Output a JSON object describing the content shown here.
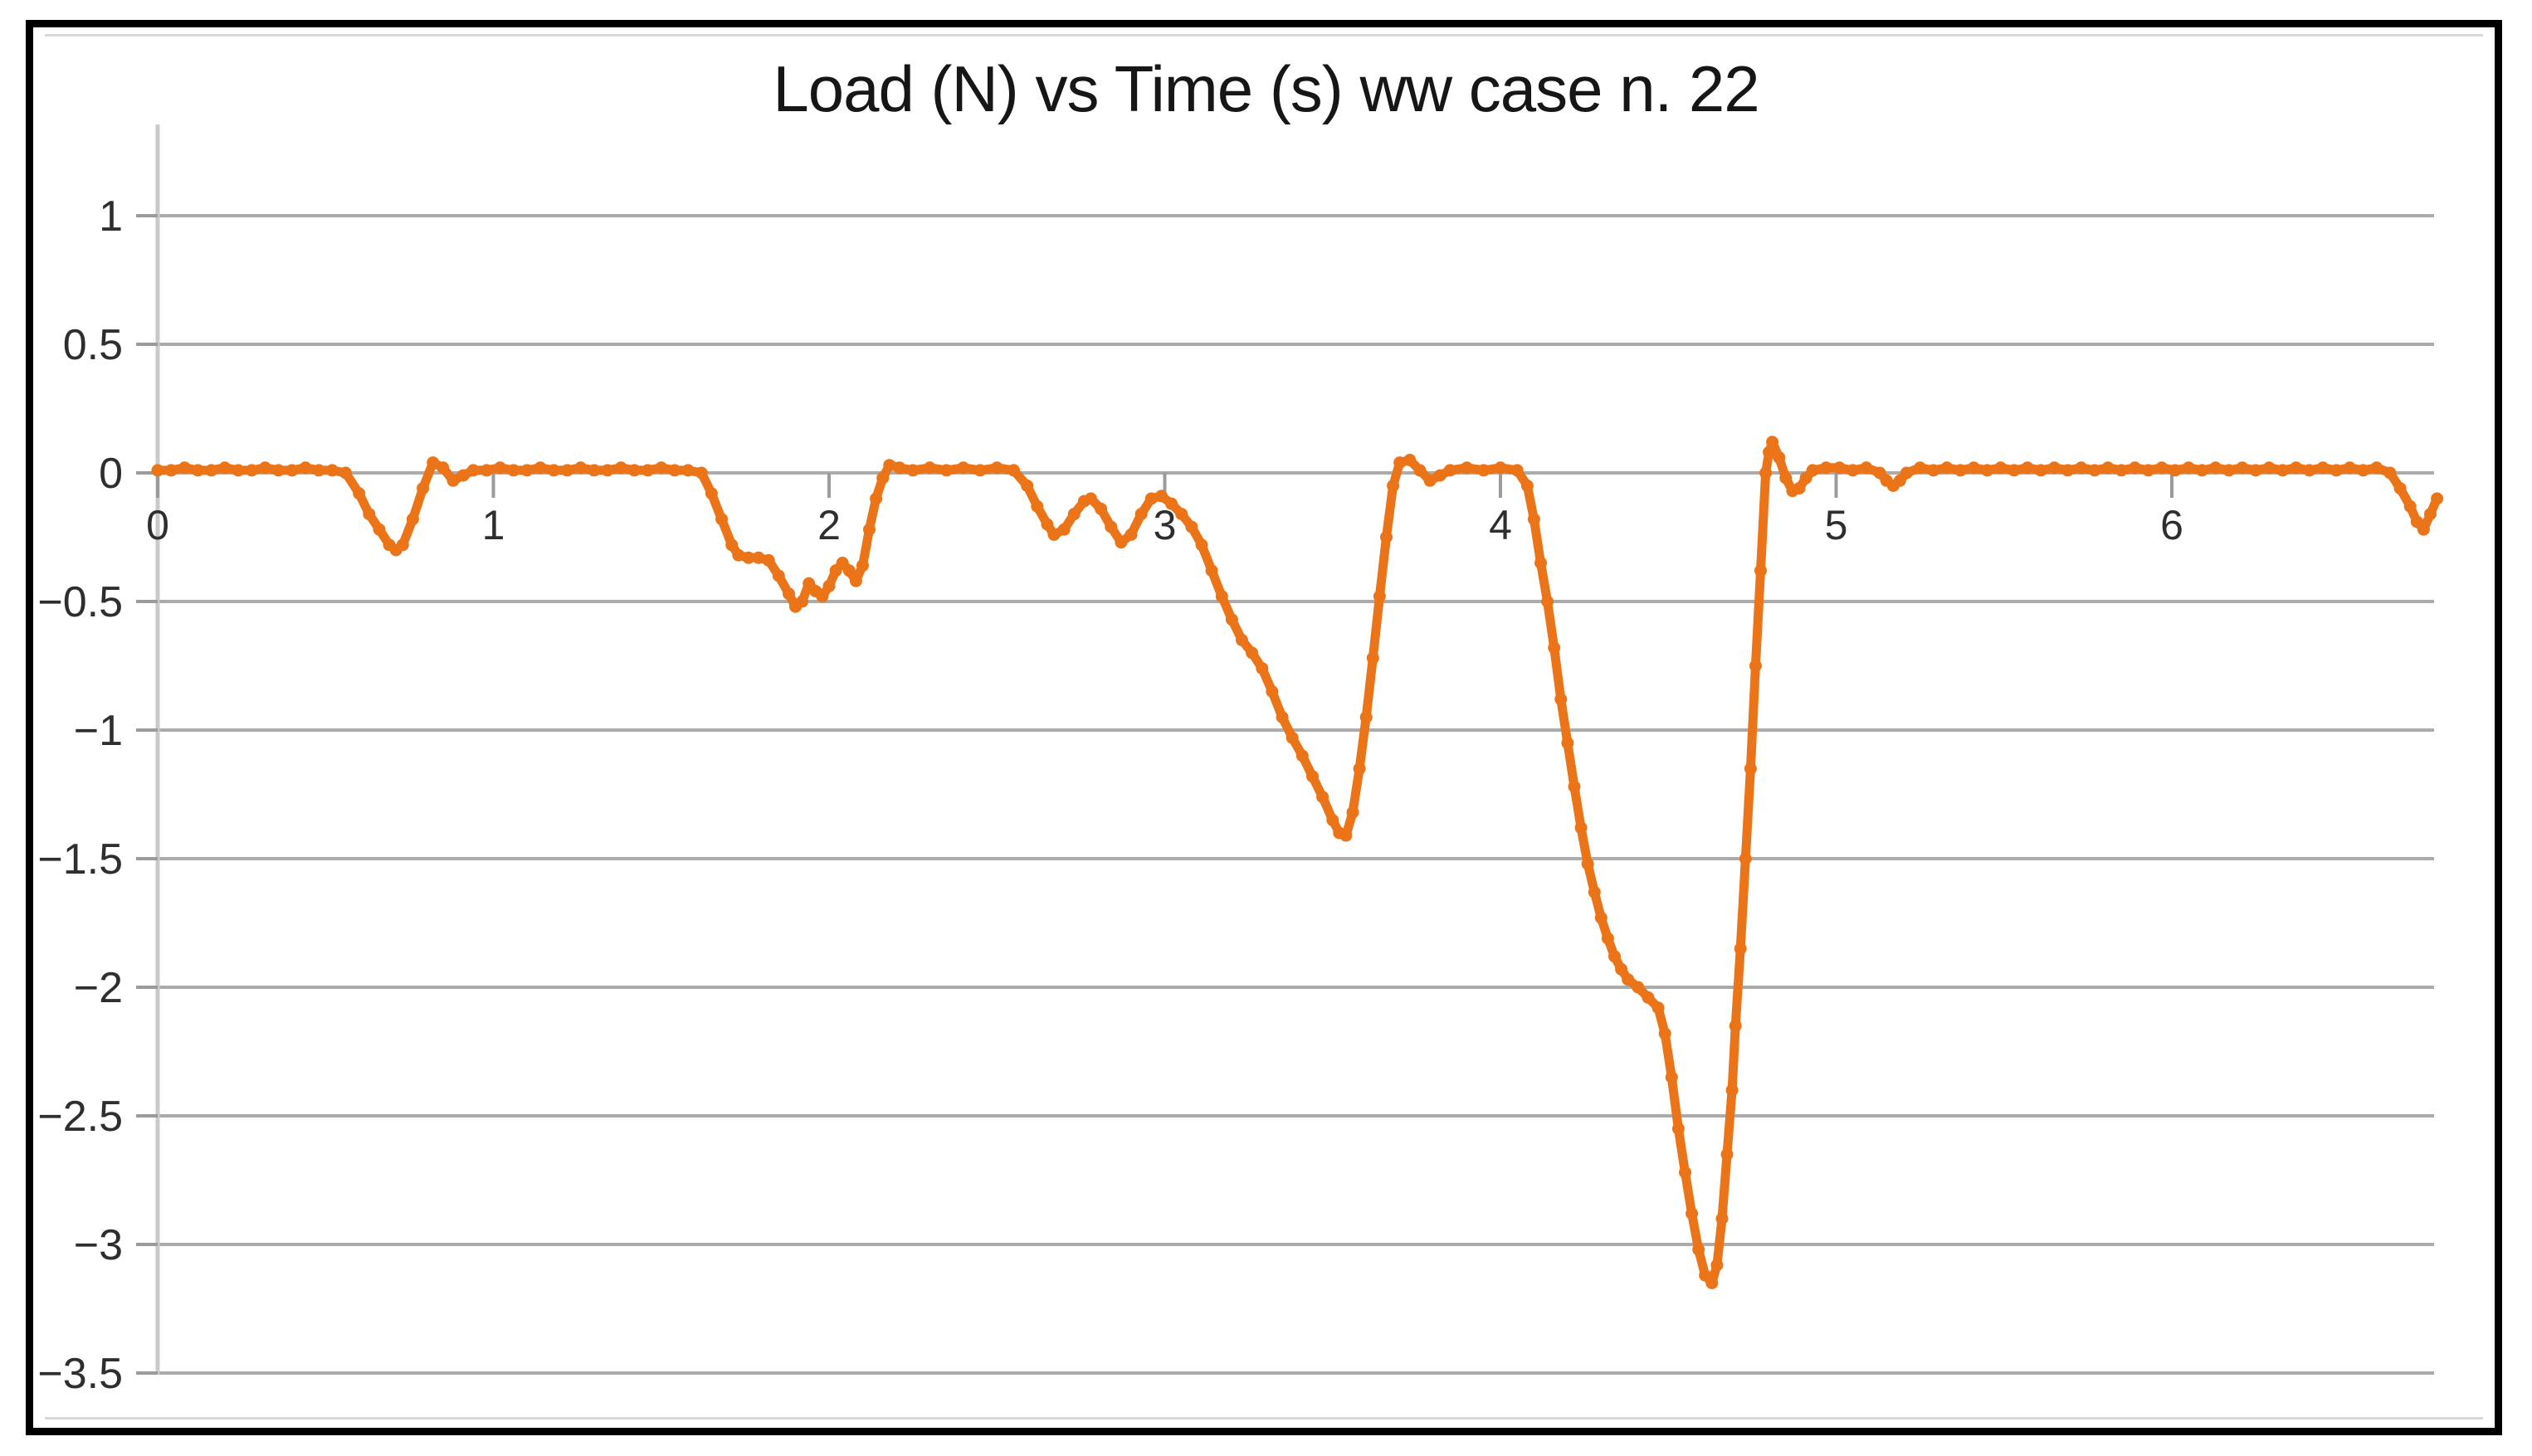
{
  "window": {
    "background": "#ffffff",
    "border_color": "#000000"
  },
  "chart": {
    "colors": {
      "series": "#ec7418",
      "gridline": "#ababab",
      "axis_line": "#c9c9c9",
      "tick": "#9b9b9b",
      "label": "#2e2e2e",
      "title": "#161616",
      "frame_line": "#d8d8d8"
    }
  },
  "chart_data": {
    "type": "line",
    "title": "Load (N) vs Time (s) ww case n. 22",
    "xlabel": "",
    "ylabel": "",
    "xlim": [
      0,
      6.78
    ],
    "ylim": [
      -3.5,
      1
    ],
    "grid": true,
    "legend": false,
    "x_ticks": [
      0,
      1,
      2,
      3,
      4,
      5,
      6
    ],
    "x_tick_labels": [
      "0",
      "1",
      "2",
      "3",
      "4",
      "5",
      "6"
    ],
    "y_ticks": [
      1,
      0.5,
      0,
      -0.5,
      -1,
      -1.5,
      -2,
      -2.5,
      -3,
      -3.5
    ],
    "y_tick_labels": [
      "1",
      "0.5",
      "0",
      "−0.5",
      "−1",
      "−1.5",
      "−2",
      "−2.5",
      "−3",
      "−3.5"
    ],
    "series": [
      {
        "name": "Load (N)",
        "points": [
          [
            0.0,
            0.01
          ],
          [
            0.04,
            0.01
          ],
          [
            0.08,
            0.02
          ],
          [
            0.12,
            0.01
          ],
          [
            0.16,
            0.01
          ],
          [
            0.2,
            0.02
          ],
          [
            0.24,
            0.01
          ],
          [
            0.28,
            0.01
          ],
          [
            0.32,
            0.02
          ],
          [
            0.36,
            0.01
          ],
          [
            0.4,
            0.01
          ],
          [
            0.44,
            0.02
          ],
          [
            0.48,
            0.01
          ],
          [
            0.52,
            0.01
          ],
          [
            0.56,
            0.0
          ],
          [
            0.6,
            -0.08
          ],
          [
            0.63,
            -0.16
          ],
          [
            0.66,
            -0.22
          ],
          [
            0.69,
            -0.28
          ],
          [
            0.71,
            -0.3
          ],
          [
            0.73,
            -0.28
          ],
          [
            0.76,
            -0.18
          ],
          [
            0.79,
            -0.06
          ],
          [
            0.82,
            0.04
          ],
          [
            0.85,
            0.02
          ],
          [
            0.88,
            -0.03
          ],
          [
            0.91,
            -0.01
          ],
          [
            0.94,
            0.01
          ],
          [
            0.98,
            0.01
          ],
          [
            1.02,
            0.02
          ],
          [
            1.06,
            0.01
          ],
          [
            1.1,
            0.01
          ],
          [
            1.14,
            0.02
          ],
          [
            1.18,
            0.01
          ],
          [
            1.22,
            0.01
          ],
          [
            1.26,
            0.02
          ],
          [
            1.3,
            0.01
          ],
          [
            1.34,
            0.01
          ],
          [
            1.38,
            0.02
          ],
          [
            1.42,
            0.01
          ],
          [
            1.46,
            0.01
          ],
          [
            1.5,
            0.02
          ],
          [
            1.54,
            0.01
          ],
          [
            1.58,
            0.01
          ],
          [
            1.62,
            0.0
          ],
          [
            1.65,
            -0.08
          ],
          [
            1.68,
            -0.18
          ],
          [
            1.71,
            -0.28
          ],
          [
            1.73,
            -0.32
          ],
          [
            1.76,
            -0.33
          ],
          [
            1.79,
            -0.33
          ],
          [
            1.82,
            -0.34
          ],
          [
            1.85,
            -0.4
          ],
          [
            1.88,
            -0.47
          ],
          [
            1.9,
            -0.52
          ],
          [
            1.92,
            -0.5
          ],
          [
            1.94,
            -0.43
          ],
          [
            1.96,
            -0.46
          ],
          [
            1.98,
            -0.48
          ],
          [
            2.0,
            -0.44
          ],
          [
            2.02,
            -0.38
          ],
          [
            2.04,
            -0.35
          ],
          [
            2.06,
            -0.38
          ],
          [
            2.08,
            -0.42
          ],
          [
            2.1,
            -0.36
          ],
          [
            2.12,
            -0.22
          ],
          [
            2.14,
            -0.1
          ],
          [
            2.16,
            -0.02
          ],
          [
            2.18,
            0.03
          ],
          [
            2.21,
            0.02
          ],
          [
            2.25,
            0.01
          ],
          [
            2.3,
            0.02
          ],
          [
            2.35,
            0.01
          ],
          [
            2.4,
            0.02
          ],
          [
            2.45,
            0.01
          ],
          [
            2.5,
            0.02
          ],
          [
            2.55,
            0.01
          ],
          [
            2.59,
            -0.05
          ],
          [
            2.62,
            -0.13
          ],
          [
            2.65,
            -0.2
          ],
          [
            2.67,
            -0.24
          ],
          [
            2.7,
            -0.22
          ],
          [
            2.73,
            -0.16
          ],
          [
            2.76,
            -0.11
          ],
          [
            2.78,
            -0.1
          ],
          [
            2.81,
            -0.14
          ],
          [
            2.84,
            -0.21
          ],
          [
            2.87,
            -0.27
          ],
          [
            2.9,
            -0.24
          ],
          [
            2.93,
            -0.16
          ],
          [
            2.96,
            -0.1
          ],
          [
            2.99,
            -0.09
          ],
          [
            3.02,
            -0.12
          ],
          [
            3.05,
            -0.16
          ],
          [
            3.08,
            -0.21
          ],
          [
            3.11,
            -0.28
          ],
          [
            3.14,
            -0.38
          ],
          [
            3.17,
            -0.48
          ],
          [
            3.2,
            -0.57
          ],
          [
            3.23,
            -0.65
          ],
          [
            3.26,
            -0.7
          ],
          [
            3.29,
            -0.76
          ],
          [
            3.32,
            -0.85
          ],
          [
            3.35,
            -0.95
          ],
          [
            3.38,
            -1.03
          ],
          [
            3.41,
            -1.1
          ],
          [
            3.44,
            -1.18
          ],
          [
            3.47,
            -1.26
          ],
          [
            3.5,
            -1.35
          ],
          [
            3.52,
            -1.4
          ],
          [
            3.54,
            -1.41
          ],
          [
            3.56,
            -1.32
          ],
          [
            3.58,
            -1.15
          ],
          [
            3.6,
            -0.95
          ],
          [
            3.62,
            -0.72
          ],
          [
            3.64,
            -0.48
          ],
          [
            3.66,
            -0.25
          ],
          [
            3.68,
            -0.05
          ],
          [
            3.7,
            0.04
          ],
          [
            3.73,
            0.05
          ],
          [
            3.76,
            0.01
          ],
          [
            3.79,
            -0.03
          ],
          [
            3.82,
            -0.01
          ],
          [
            3.85,
            0.01
          ],
          [
            3.9,
            0.02
          ],
          [
            3.95,
            0.01
          ],
          [
            4.0,
            0.02
          ],
          [
            4.05,
            0.01
          ],
          [
            4.08,
            -0.05
          ],
          [
            4.1,
            -0.18
          ],
          [
            4.12,
            -0.35
          ],
          [
            4.14,
            -0.5
          ],
          [
            4.16,
            -0.68
          ],
          [
            4.18,
            -0.88
          ],
          [
            4.2,
            -1.05
          ],
          [
            4.22,
            -1.22
          ],
          [
            4.24,
            -1.38
          ],
          [
            4.26,
            -1.52
          ],
          [
            4.28,
            -1.63
          ],
          [
            4.3,
            -1.73
          ],
          [
            4.32,
            -1.81
          ],
          [
            4.34,
            -1.88
          ],
          [
            4.36,
            -1.93
          ],
          [
            4.38,
            -1.97
          ],
          [
            4.41,
            -2.0
          ],
          [
            4.44,
            -2.04
          ],
          [
            4.47,
            -2.08
          ],
          [
            4.49,
            -2.18
          ],
          [
            4.51,
            -2.35
          ],
          [
            4.53,
            -2.55
          ],
          [
            4.55,
            -2.72
          ],
          [
            4.57,
            -2.88
          ],
          [
            4.59,
            -3.02
          ],
          [
            4.61,
            -3.12
          ],
          [
            4.63,
            -3.15
          ],
          [
            4.645,
            -3.08
          ],
          [
            4.66,
            -2.9
          ],
          [
            4.675,
            -2.65
          ],
          [
            4.69,
            -2.4
          ],
          [
            4.7,
            -2.15
          ],
          [
            4.715,
            -1.85
          ],
          [
            4.73,
            -1.5
          ],
          [
            4.745,
            -1.15
          ],
          [
            4.76,
            -0.75
          ],
          [
            4.775,
            -0.38
          ],
          [
            4.79,
            0.0
          ],
          [
            4.8,
            0.08
          ],
          [
            4.81,
            0.12
          ],
          [
            4.83,
            0.06
          ],
          [
            4.85,
            -0.02
          ],
          [
            4.87,
            -0.07
          ],
          [
            4.89,
            -0.06
          ],
          [
            4.91,
            -0.02
          ],
          [
            4.93,
            0.01
          ],
          [
            4.97,
            0.02
          ],
          [
            5.01,
            0.02
          ],
          [
            5.05,
            0.01
          ],
          [
            5.09,
            0.02
          ],
          [
            5.13,
            0.0
          ],
          [
            5.15,
            -0.03
          ],
          [
            5.17,
            -0.05
          ],
          [
            5.19,
            -0.03
          ],
          [
            5.21,
            0.0
          ],
          [
            5.25,
            0.02
          ],
          [
            5.29,
            0.01
          ],
          [
            5.33,
            0.02
          ],
          [
            5.37,
            0.01
          ],
          [
            5.41,
            0.02
          ],
          [
            5.45,
            0.01
          ],
          [
            5.49,
            0.02
          ],
          [
            5.53,
            0.01
          ],
          [
            5.57,
            0.02
          ],
          [
            5.61,
            0.01
          ],
          [
            5.65,
            0.02
          ],
          [
            5.69,
            0.01
          ],
          [
            5.73,
            0.02
          ],
          [
            5.77,
            0.01
          ],
          [
            5.81,
            0.02
          ],
          [
            5.85,
            0.01
          ],
          [
            5.89,
            0.02
          ],
          [
            5.93,
            0.01
          ],
          [
            5.97,
            0.02
          ],
          [
            6.01,
            0.01
          ],
          [
            6.05,
            0.02
          ],
          [
            6.09,
            0.01
          ],
          [
            6.13,
            0.02
          ],
          [
            6.17,
            0.01
          ],
          [
            6.21,
            0.02
          ],
          [
            6.25,
            0.01
          ],
          [
            6.29,
            0.02
          ],
          [
            6.33,
            0.01
          ],
          [
            6.37,
            0.02
          ],
          [
            6.41,
            0.01
          ],
          [
            6.45,
            0.02
          ],
          [
            6.49,
            0.01
          ],
          [
            6.53,
            0.02
          ],
          [
            6.57,
            0.01
          ],
          [
            6.61,
            0.02
          ],
          [
            6.65,
            0.0
          ],
          [
            6.68,
            -0.06
          ],
          [
            6.71,
            -0.13
          ],
          [
            6.73,
            -0.19
          ],
          [
            6.75,
            -0.22
          ],
          [
            6.77,
            -0.16
          ],
          [
            6.79,
            -0.1
          ]
        ]
      }
    ]
  }
}
